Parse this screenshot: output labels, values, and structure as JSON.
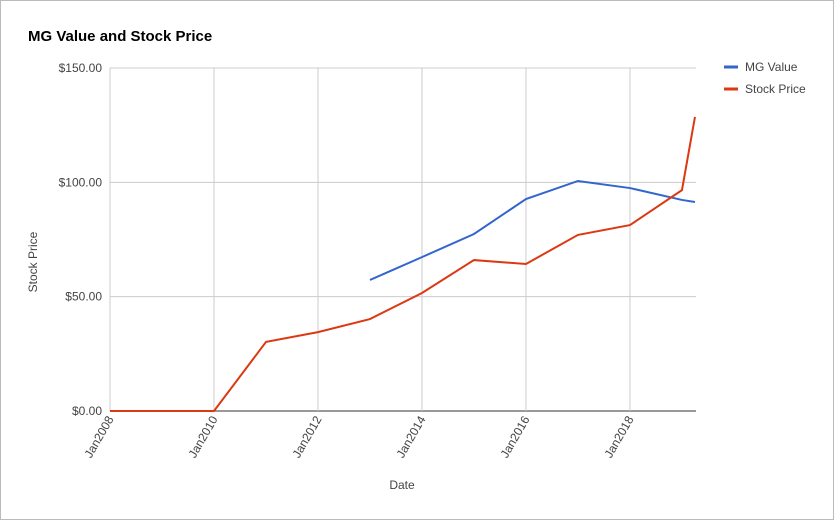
{
  "chart_data": {
    "type": "line",
    "title": "MG Value and Stock Price",
    "x_label": "Date",
    "y_label": "Stock Price",
    "x": [
      2008,
      2009,
      2010,
      2011,
      2012,
      2013,
      2014,
      2015,
      2016,
      2017,
      2018,
      2019,
      2019.25
    ],
    "series": [
      {
        "name": "MG Value",
        "color": "#3366cc",
        "values": [
          null,
          null,
          null,
          null,
          null,
          57.3,
          67.3,
          77.4,
          92.7,
          100.6,
          97.5,
          92.3,
          91.4
        ]
      },
      {
        "name": "Stock Price",
        "color": "#dc3912",
        "values": [
          0,
          0,
          0,
          30.2,
          34.5,
          40.2,
          51.6,
          66,
          64.3,
          77,
          81.3,
          96.6,
          128.6
        ]
      }
    ],
    "xlim": [
      2008,
      2019.27
    ],
    "xticks": [
      {
        "value": 2008,
        "label": "Jan2008"
      },
      {
        "value": 2010,
        "label": "Jan2010"
      },
      {
        "value": 2012,
        "label": "Jan2012"
      },
      {
        "value": 2014,
        "label": "Jan2014"
      },
      {
        "value": 2016,
        "label": "Jan2016"
      },
      {
        "value": 2018,
        "label": "Jan2018"
      }
    ],
    "ylim": [
      0,
      150
    ],
    "yticks": [
      {
        "value": 0,
        "label": "$0.00"
      },
      {
        "value": 50,
        "label": "$50.00"
      },
      {
        "value": 100,
        "label": "$100.00"
      },
      {
        "value": 150,
        "label": "$150.00"
      }
    ],
    "grid": true,
    "legend": "right"
  }
}
